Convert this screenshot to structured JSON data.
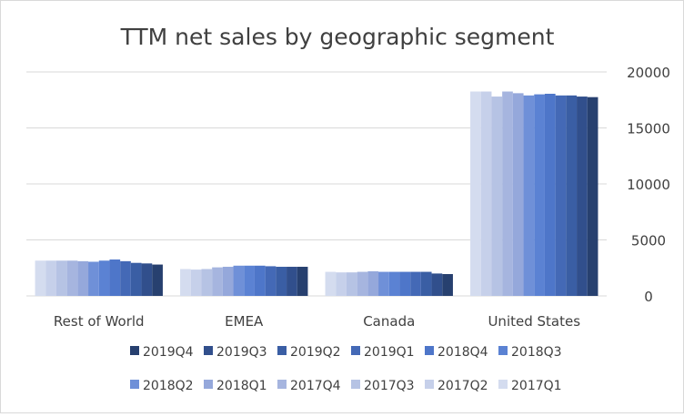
{
  "chart_data": {
    "type": "bar",
    "title": "TTM net sales by geographic segment",
    "xlabel": "",
    "ylabel": "",
    "categories": [
      "Rest of World",
      "EMEA",
      "Canada",
      "United States"
    ],
    "ylim": [
      0,
      20000
    ],
    "yticks": [
      "0",
      "5000",
      "10000",
      "15000",
      "20000"
    ],
    "y_axis_position": "right",
    "grid": true,
    "legend_position": "bottom",
    "series": [
      {
        "name": "2017Q1",
        "color": "#d4dcef",
        "values": [
          3150,
          2400,
          2150,
          18250
        ]
      },
      {
        "name": "2017Q2",
        "color": "#c6d0ea",
        "values": [
          3150,
          2350,
          2100,
          18250
        ]
      },
      {
        "name": "2017Q3",
        "color": "#b6c3e4",
        "values": [
          3150,
          2400,
          2100,
          17800
        ]
      },
      {
        "name": "2017Q4",
        "color": "#a6b5df",
        "values": [
          3150,
          2550,
          2150,
          18250
        ]
      },
      {
        "name": "2018Q1",
        "color": "#95a8db",
        "values": [
          3100,
          2600,
          2200,
          18100
        ]
      },
      {
        "name": "2018Q2",
        "color": "#6f90d8",
        "values": [
          3050,
          2700,
          2150,
          17900
        ]
      },
      {
        "name": "2018Q3",
        "color": "#5b82d3",
        "values": [
          3150,
          2700,
          2150,
          18000
        ]
      },
      {
        "name": "2018Q4",
        "color": "#4e76c9",
        "values": [
          3250,
          2700,
          2150,
          18050
        ]
      },
      {
        "name": "2019Q1",
        "color": "#4469b6",
        "values": [
          3100,
          2650,
          2150,
          17900
        ]
      },
      {
        "name": "2019Q2",
        "color": "#3a5ea4",
        "values": [
          2950,
          2600,
          2150,
          17900
        ]
      },
      {
        "name": "2019Q3",
        "color": "#314f8c",
        "values": [
          2900,
          2600,
          2000,
          17800
        ]
      },
      {
        "name": "2019Q4",
        "color": "#27406f",
        "values": [
          2800,
          2600,
          1950,
          17750
        ]
      }
    ],
    "legend_order": [
      "2019Q4",
      "2019Q3",
      "2019Q2",
      "2019Q1",
      "2018Q4",
      "2018Q3",
      "2018Q2",
      "2018Q1",
      "2017Q4",
      "2017Q3",
      "2017Q2",
      "2017Q1"
    ]
  }
}
